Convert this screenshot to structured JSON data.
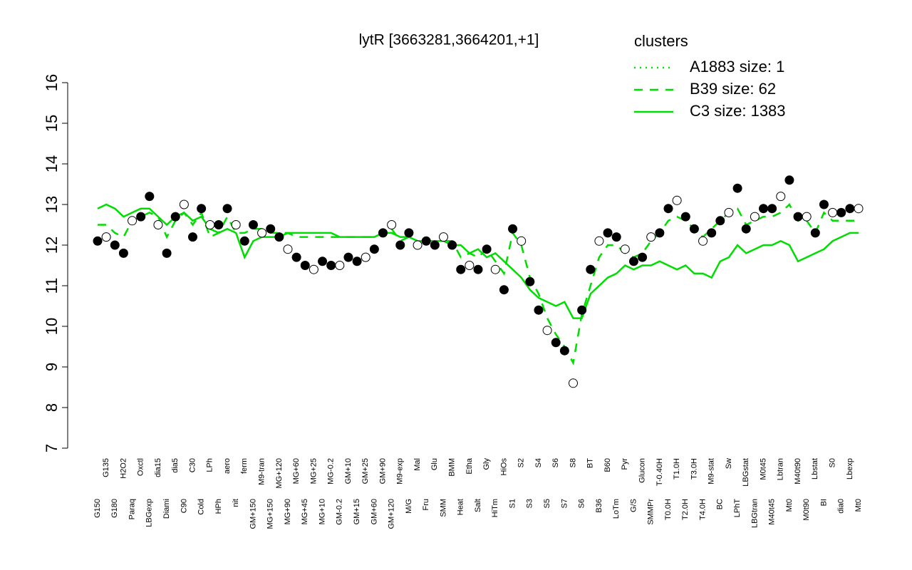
{
  "chart_data": {
    "type": "line",
    "title": "lytR [3663281,3664201,+1]",
    "legend_title": "clusters",
    "legend_position": "top-right",
    "legend_color": "#00dd00",
    "categories": [
      "G150",
      "G135",
      "G180",
      "H2O2",
      "Paraq",
      "Oxctl",
      "LBGexp",
      "dia15",
      "Diami",
      "dia5",
      "C90",
      "C30",
      "Cold",
      "LPh",
      "HPh",
      "aero",
      "nit",
      "ferm",
      "GM+150",
      "M9-tran",
      "MG+150",
      "MG+120",
      "MG+90",
      "MG+60",
      "MG+45",
      "MG+25",
      "MG+10",
      "MG-0.2",
      "GM-0.2",
      "GM+10",
      "GM+15",
      "GM+25",
      "GM+60",
      "GM+90",
      "GM+120",
      "M9-exp",
      "M/G",
      "Mal",
      "Fru",
      "Glu",
      "SMM",
      "BMM",
      "Heat",
      "Etha",
      "Salt",
      "Gly",
      "HiTm",
      "HiOs",
      "S1",
      "S2",
      "S3",
      "S4",
      "S5",
      "S6",
      "S7",
      "S8",
      "S6",
      "BT",
      "B36",
      "B60",
      "LoTm",
      "Pyr",
      "G/S",
      "Glucon",
      "SMMPr",
      "T-0.40H",
      "T0.0H",
      "T1.0H",
      "T2.0H",
      "T3.0H",
      "T4.0H",
      "M9-stat",
      "BC",
      "Sw",
      "LPhT",
      "LBGstat",
      "LBGtran",
      "M0t45",
      "M40t45",
      "Lbtran",
      "Mt0",
      "M40t90",
      "M0t90",
      "Lbstat",
      "BI",
      "S0",
      "dia0",
      "Lbexp",
      "Mt0"
    ],
    "series": [
      {
        "name": "A1883 size: 1",
        "color": "#000000",
        "style": "dotted",
        "markers": true,
        "values": [
          12.1,
          12.2,
          12.0,
          11.8,
          12.6,
          12.7,
          13.2,
          12.5,
          11.8,
          12.7,
          13.0,
          12.2,
          12.9,
          12.5,
          12.5,
          12.9,
          12.5,
          12.1,
          12.5,
          12.3,
          12.4,
          12.2,
          11.9,
          11.7,
          11.5,
          11.4,
          11.6,
          11.5,
          11.5,
          11.7,
          11.6,
          11.7,
          11.9,
          12.3,
          12.5,
          12.0,
          12.3,
          12.0,
          12.1,
          12.0,
          12.2,
          12.0,
          11.4,
          11.5,
          11.4,
          11.9,
          11.4,
          10.9,
          12.4,
          12.1,
          11.1,
          10.4,
          9.9,
          9.6,
          9.4,
          8.6,
          10.4,
          11.4,
          12.1,
          12.3,
          12.2,
          11.9,
          11.6,
          11.7,
          12.2,
          12.3,
          12.9,
          13.1,
          12.7,
          12.4,
          12.1,
          12.3,
          12.6,
          12.8,
          13.4,
          12.4,
          12.7,
          12.9,
          12.9,
          13.2,
          13.6,
          12.7,
          12.7,
          12.3,
          13.0,
          12.8,
          12.8,
          12.9,
          12.9
        ]
      },
      {
        "name": "B39 size: 62",
        "color": "#00dd00",
        "style": "dashed",
        "markers": false,
        "values": [
          12.5,
          12.5,
          12.3,
          12.2,
          12.6,
          12.7,
          12.8,
          12.7,
          12.2,
          12.6,
          12.8,
          12.5,
          12.8,
          12.2,
          12.3,
          12.7,
          12.3,
          12.3,
          12.4,
          12.4,
          12.3,
          12.3,
          12.3,
          12.2,
          12.2,
          12.2,
          12.2,
          12.2,
          12.2,
          12.2,
          12.2,
          12.2,
          12.2,
          12.3,
          12.4,
          12.1,
          12.2,
          12.1,
          12.1,
          12.1,
          12.1,
          12.1,
          11.7,
          11.8,
          11.7,
          11.9,
          11.6,
          11.3,
          12.3,
          12.0,
          11.2,
          10.8,
          10.2,
          9.8,
          9.5,
          9.1,
          10.3,
          11.0,
          11.7,
          12.0,
          12.0,
          11.8,
          11.7,
          11.8,
          12.1,
          12.3,
          12.6,
          12.7,
          12.6,
          12.4,
          12.2,
          12.4,
          12.6,
          12.8,
          12.9,
          12.5,
          12.6,
          12.7,
          12.7,
          12.8,
          13.0,
          12.6,
          12.6,
          12.3,
          12.8,
          12.6,
          12.6,
          12.6,
          12.6
        ]
      },
      {
        "name": "C3 size: 1383",
        "color": "#00dd00",
        "style": "solid",
        "markers": false,
        "values": [
          12.9,
          13.0,
          12.9,
          12.7,
          12.8,
          12.9,
          12.9,
          12.7,
          12.5,
          12.7,
          12.8,
          12.6,
          12.7,
          12.4,
          12.3,
          12.4,
          12.3,
          11.7,
          12.1,
          12.2,
          12.2,
          12.2,
          12.3,
          12.3,
          12.3,
          12.3,
          12.3,
          12.3,
          12.2,
          12.2,
          12.2,
          12.2,
          12.2,
          12.3,
          12.3,
          12.2,
          12.2,
          12.1,
          12.1,
          12.1,
          12.1,
          12.0,
          12.0,
          11.8,
          11.9,
          11.7,
          11.8,
          11.6,
          11.4,
          11.2,
          10.9,
          10.7,
          10.6,
          10.5,
          10.6,
          10.2,
          10.2,
          10.8,
          11.0,
          11.2,
          11.3,
          11.5,
          11.4,
          11.5,
          11.5,
          11.6,
          11.5,
          11.4,
          11.5,
          11.3,
          11.3,
          11.2,
          11.6,
          11.7,
          12.0,
          11.8,
          11.9,
          12.0,
          12.0,
          12.1,
          12.0,
          11.6,
          11.7,
          11.8,
          11.9,
          12.1,
          12.2,
          12.3,
          12.3
        ]
      }
    ],
    "ylim": [
      7,
      16
    ],
    "yticks": [
      7,
      8,
      9,
      10,
      11,
      12,
      13,
      14,
      15,
      16
    ]
  }
}
